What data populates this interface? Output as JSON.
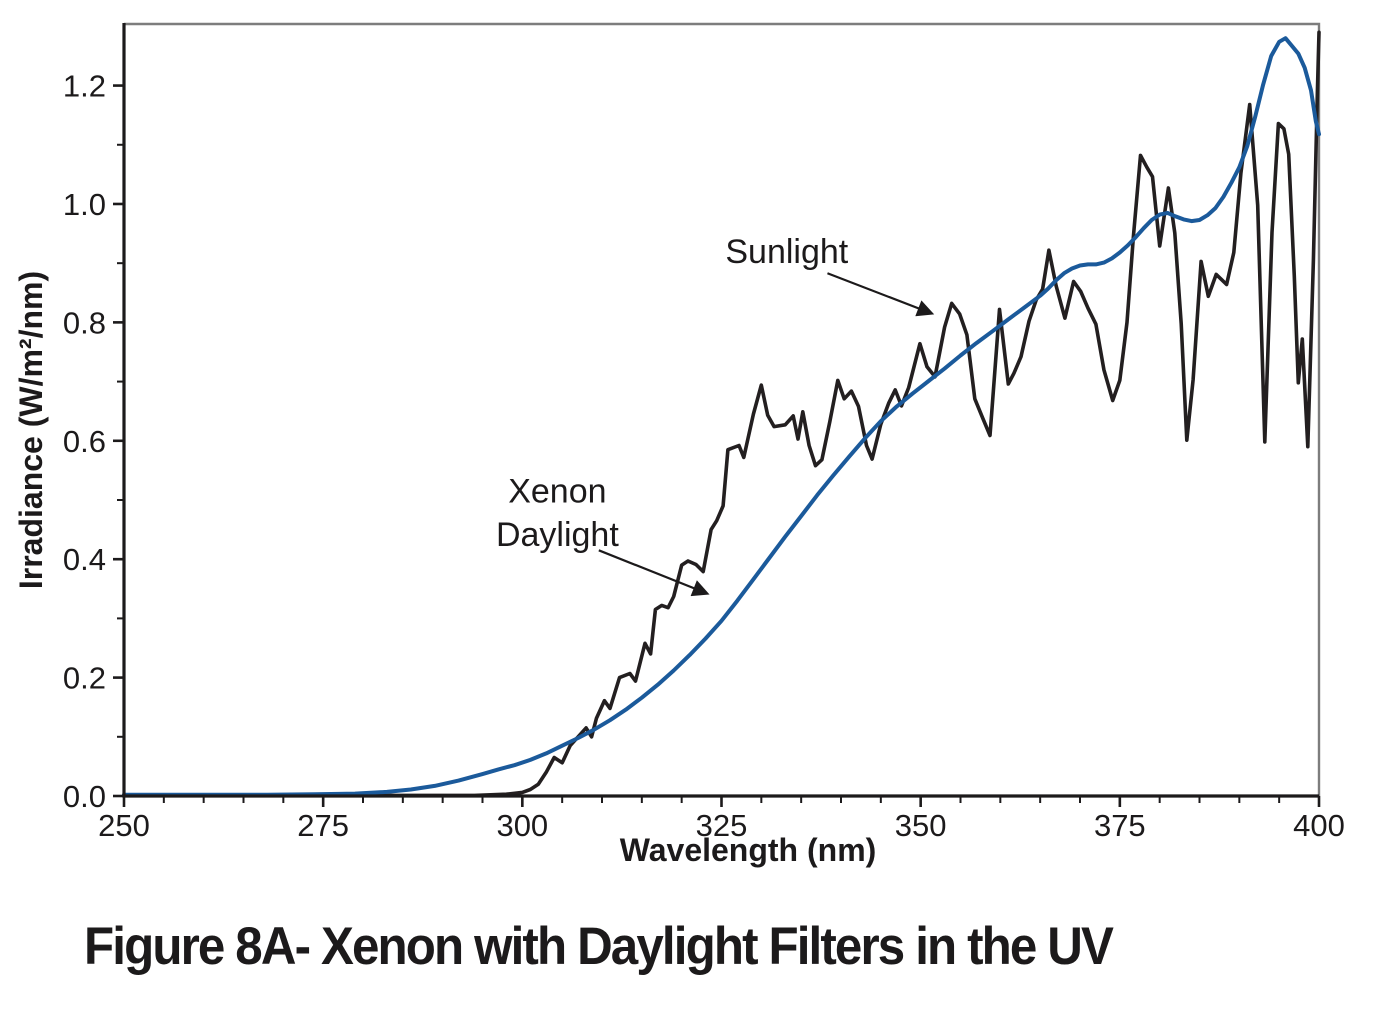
{
  "figure_caption": "Figure 8A- Xenon with Daylight Filters in the UV",
  "colors": {
    "sunlight_line": "#231f20",
    "xenon_line": "#1b5a9b",
    "axis": "#1c1a1b",
    "frame_gray": "#7d7d7d",
    "text": "#1c1a1b"
  },
  "chart_data": {
    "type": "line",
    "title": "",
    "xlabel": "Wavelength (nm)",
    "ylabel": "Irradiance (W/m²/nm)",
    "xlim": [
      250,
      400
    ],
    "ylim": [
      0,
      1.304
    ],
    "grid": false,
    "legend_position": "none (inline arrow annotations)",
    "x_major_ticks": [
      250,
      275,
      300,
      325,
      350,
      375,
      400
    ],
    "x_tick_labels": [
      "250",
      "275",
      "300",
      "325",
      "350",
      "375",
      "400"
    ],
    "x_minor_step": 5,
    "y_major_ticks": [
      0.0,
      0.2,
      0.4,
      0.6,
      0.8,
      1.0,
      1.2
    ],
    "y_tick_labels": [
      "0.0",
      "0.2",
      "0.4",
      "0.6",
      "0.8",
      "1.0",
      "1.2"
    ],
    "y_minor_step": 0.1,
    "annotations": [
      {
        "id": "sunlight",
        "lines": [
          "Sunlight"
        ],
        "text_nm": 333.2,
        "line_vals": [
          0.9
        ],
        "arrow": {
          "from_nm": 338.3,
          "from_val": 0.883,
          "to_nm": 351.4,
          "to_val": 0.815
        }
      },
      {
        "id": "xenon-daylight",
        "lines": [
          "Xenon",
          "Daylight"
        ],
        "text_nm": 304.4,
        "line_vals": [
          0.496,
          0.422
        ],
        "arrow": {
          "from_nm": 309.6,
          "from_val": 0.415,
          "to_nm": 323.2,
          "to_val": 0.342
        }
      }
    ],
    "series": [
      {
        "name": "Sunlight",
        "color": "#231f20",
        "stroke_width": 3.6,
        "points": [
          [
            250,
            0.001
          ],
          [
            258,
            0.001
          ],
          [
            266,
            0.001
          ],
          [
            274,
            0.001
          ],
          [
            282,
            0.001
          ],
          [
            290,
            0.001
          ],
          [
            294,
            0.001
          ],
          [
            296,
            0.002
          ],
          [
            298,
            0.003
          ],
          [
            300,
            0.006
          ],
          [
            301,
            0.011
          ],
          [
            302,
            0.02
          ],
          [
            303,
            0.04
          ],
          [
            304,
            0.065
          ],
          [
            305,
            0.056
          ],
          [
            306,
            0.085
          ],
          [
            307,
            0.1
          ],
          [
            308,
            0.115
          ],
          [
            308.7,
            0.1
          ],
          [
            309.3,
            0.131
          ],
          [
            310.3,
            0.161
          ],
          [
            311,
            0.148
          ],
          [
            312.2,
            0.2
          ],
          [
            313.5,
            0.207
          ],
          [
            314.2,
            0.194
          ],
          [
            315.4,
            0.258
          ],
          [
            316.1,
            0.24
          ],
          [
            316.7,
            0.315
          ],
          [
            317.5,
            0.322
          ],
          [
            318.3,
            0.318
          ],
          [
            319,
            0.337
          ],
          [
            320,
            0.39
          ],
          [
            320.8,
            0.397
          ],
          [
            321.8,
            0.391
          ],
          [
            322.7,
            0.379
          ],
          [
            323.7,
            0.45
          ],
          [
            324.4,
            0.465
          ],
          [
            325.2,
            0.49
          ],
          [
            325.8,
            0.585
          ],
          [
            327.2,
            0.592
          ],
          [
            327.8,
            0.572
          ],
          [
            329,
            0.645
          ],
          [
            330,
            0.694
          ],
          [
            330.8,
            0.643
          ],
          [
            331.6,
            0.624
          ],
          [
            333,
            0.627
          ],
          [
            334,
            0.642
          ],
          [
            334.6,
            0.603
          ],
          [
            335.2,
            0.649
          ],
          [
            336,
            0.592
          ],
          [
            336.8,
            0.558
          ],
          [
            337.6,
            0.568
          ],
          [
            338.6,
            0.632
          ],
          [
            339.6,
            0.702
          ],
          [
            340.4,
            0.671
          ],
          [
            341.3,
            0.684
          ],
          [
            342.2,
            0.658
          ],
          [
            343.2,
            0.592
          ],
          [
            343.9,
            0.569
          ],
          [
            345,
            0.628
          ],
          [
            346,
            0.664
          ],
          [
            346.8,
            0.686
          ],
          [
            347.6,
            0.659
          ],
          [
            348.5,
            0.69
          ],
          [
            349.9,
            0.764
          ],
          [
            350.8,
            0.725
          ],
          [
            351.8,
            0.708
          ],
          [
            353,
            0.792
          ],
          [
            353.9,
            0.832
          ],
          [
            354.9,
            0.814
          ],
          [
            355.8,
            0.779
          ],
          [
            356.8,
            0.671
          ],
          [
            357.8,
            0.638
          ],
          [
            358.7,
            0.609
          ],
          [
            359.9,
            0.822
          ],
          [
            361,
            0.696
          ],
          [
            361.7,
            0.714
          ],
          [
            362.6,
            0.742
          ],
          [
            363.6,
            0.802
          ],
          [
            364.5,
            0.838
          ],
          [
            365.3,
            0.856
          ],
          [
            366.1,
            0.922
          ],
          [
            367,
            0.862
          ],
          [
            368.1,
            0.807
          ],
          [
            369.2,
            0.869
          ],
          [
            370.1,
            0.852
          ],
          [
            371,
            0.824
          ],
          [
            372,
            0.797
          ],
          [
            373,
            0.72
          ],
          [
            374.1,
            0.668
          ],
          [
            375,
            0.702
          ],
          [
            375.9,
            0.8
          ],
          [
            376.7,
            0.945
          ],
          [
            377.6,
            1.082
          ],
          [
            378.4,
            1.062
          ],
          [
            379.1,
            1.046
          ],
          [
            380,
            0.929
          ],
          [
            381.1,
            1.027
          ],
          [
            381.9,
            0.951
          ],
          [
            382.7,
            0.798
          ],
          [
            383.4,
            0.601
          ],
          [
            384.2,
            0.703
          ],
          [
            385.2,
            0.903
          ],
          [
            386.1,
            0.844
          ],
          [
            387.1,
            0.881
          ],
          [
            387.8,
            0.872
          ],
          [
            388.4,
            0.864
          ],
          [
            389.3,
            0.918
          ],
          [
            390.2,
            1.052
          ],
          [
            391.3,
            1.168
          ],
          [
            392.3,
            0.998
          ],
          [
            393.2,
            0.598
          ],
          [
            394.1,
            0.952
          ],
          [
            394.9,
            1.136
          ],
          [
            395.6,
            1.127
          ],
          [
            396.2,
            1.084
          ],
          [
            396.9,
            0.878
          ],
          [
            397.4,
            0.698
          ],
          [
            397.9,
            0.772
          ],
          [
            398.6,
            0.59
          ],
          [
            399.3,
            0.905
          ],
          [
            399.8,
            1.19
          ],
          [
            400,
            1.29
          ]
        ]
      },
      {
        "name": "Xenon Daylight",
        "color": "#1b5a9b",
        "stroke_width": 4,
        "points": [
          [
            250,
            0.002
          ],
          [
            256,
            0.002
          ],
          [
            262,
            0.002
          ],
          [
            268,
            0.002
          ],
          [
            274,
            0.003
          ],
          [
            279,
            0.004
          ],
          [
            283,
            0.007
          ],
          [
            286,
            0.011
          ],
          [
            289,
            0.017
          ],
          [
            292,
            0.026
          ],
          [
            295,
            0.037
          ],
          [
            297,
            0.045
          ],
          [
            299,
            0.052
          ],
          [
            301,
            0.061
          ],
          [
            303,
            0.072
          ],
          [
            305,
            0.085
          ],
          [
            307,
            0.098
          ],
          [
            309,
            0.112
          ],
          [
            311,
            0.128
          ],
          [
            313,
            0.146
          ],
          [
            315,
            0.166
          ],
          [
            317,
            0.188
          ],
          [
            319,
            0.212
          ],
          [
            321,
            0.238
          ],
          [
            323,
            0.266
          ],
          [
            325,
            0.296
          ],
          [
            327,
            0.33
          ],
          [
            329,
            0.366
          ],
          [
            331,
            0.402
          ],
          [
            333,
            0.438
          ],
          [
            335,
            0.473
          ],
          [
            337,
            0.508
          ],
          [
            339,
            0.541
          ],
          [
            341,
            0.573
          ],
          [
            343,
            0.604
          ],
          [
            345,
            0.633
          ],
          [
            347,
            0.658
          ],
          [
            349,
            0.68
          ],
          [
            351,
            0.701
          ],
          [
            353,
            0.722
          ],
          [
            355,
            0.744
          ],
          [
            357,
            0.765
          ],
          [
            359,
            0.785
          ],
          [
            361,
            0.805
          ],
          [
            363,
            0.825
          ],
          [
            365,
            0.845
          ],
          [
            366,
            0.857
          ],
          [
            367,
            0.871
          ],
          [
            368,
            0.883
          ],
          [
            369,
            0.891
          ],
          [
            370,
            0.896
          ],
          [
            371,
            0.898
          ],
          [
            372,
            0.898
          ],
          [
            373,
            0.901
          ],
          [
            374,
            0.908
          ],
          [
            375,
            0.918
          ],
          [
            376,
            0.93
          ],
          [
            377,
            0.944
          ],
          [
            378,
            0.959
          ],
          [
            379,
            0.973
          ],
          [
            380,
            0.982
          ],
          [
            381,
            0.985
          ],
          [
            382,
            0.979
          ],
          [
            383,
            0.974
          ],
          [
            384,
            0.971
          ],
          [
            385,
            0.973
          ],
          [
            386,
            0.981
          ],
          [
            387,
            0.993
          ],
          [
            388,
            1.012
          ],
          [
            389,
            1.036
          ],
          [
            390,
            1.062
          ],
          [
            391,
            1.098
          ],
          [
            392,
            1.148
          ],
          [
            393,
            1.202
          ],
          [
            394,
            1.25
          ],
          [
            395,
            1.274
          ],
          [
            395.8,
            1.28
          ],
          [
            396.6,
            1.267
          ],
          [
            397.4,
            1.254
          ],
          [
            398.2,
            1.23
          ],
          [
            399,
            1.192
          ],
          [
            399.6,
            1.14
          ],
          [
            400,
            1.118
          ]
        ]
      }
    ]
  }
}
